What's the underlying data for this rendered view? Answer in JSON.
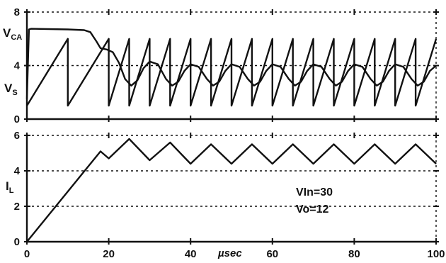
{
  "chart_data": [
    {
      "type": "line",
      "title": "",
      "xlabel": "µsec",
      "ylabel_series_labels": [
        "V",
        "V"
      ],
      "xlim": [
        0,
        100
      ],
      "ylim": [
        0,
        8
      ],
      "x_ticks": [
        0,
        20,
        40,
        60,
        80,
        100
      ],
      "y_ticks": [
        0,
        4,
        8
      ],
      "grid": true,
      "series": [
        {
          "name": "V_CA",
          "label_main": "V",
          "label_sub": "CA",
          "points": [
            [
              0,
              1.5
            ],
            [
              0.5,
              6.7
            ],
            [
              1,
              6.75
            ],
            [
              10,
              6.7
            ],
            [
              14,
              6.65
            ],
            [
              15.5,
              6.5
            ],
            [
              17,
              5.8
            ],
            [
              18,
              5.3
            ],
            [
              19.5,
              5.2
            ],
            [
              21,
              5.0
            ],
            [
              22.5,
              4.2
            ],
            [
              24,
              3.0
            ],
            [
              25.5,
              2.5
            ],
            [
              27,
              2.9
            ],
            [
              28.5,
              3.8
            ],
            [
              30,
              4.3
            ],
            [
              32,
              4.1
            ],
            [
              34,
              3.0
            ],
            [
              35.5,
              2.5
            ],
            [
              37,
              2.8
            ],
            [
              38.5,
              3.6
            ],
            [
              40,
              4.1
            ],
            [
              42,
              3.9
            ],
            [
              44,
              3.0
            ],
            [
              45.5,
              2.5
            ],
            [
              47,
              2.8
            ],
            [
              48.5,
              3.6
            ],
            [
              50,
              4.1
            ],
            [
              52,
              3.9
            ],
            [
              54,
              3.0
            ],
            [
              55.5,
              2.5
            ],
            [
              57,
              2.8
            ],
            [
              58.5,
              3.6
            ],
            [
              60,
              4.1
            ],
            [
              62,
              3.9
            ],
            [
              64,
              3.0
            ],
            [
              65.5,
              2.5
            ],
            [
              67,
              2.8
            ],
            [
              68.5,
              3.6
            ],
            [
              70,
              4.1
            ],
            [
              72,
              3.9
            ],
            [
              74,
              3.0
            ],
            [
              75.5,
              2.5
            ],
            [
              77,
              2.8
            ],
            [
              78.5,
              3.6
            ],
            [
              80,
              4.1
            ],
            [
              82,
              3.9
            ],
            [
              84,
              3.0
            ],
            [
              85.5,
              2.5
            ],
            [
              87,
              2.8
            ],
            [
              88.5,
              3.6
            ],
            [
              90,
              4.1
            ],
            [
              92,
              3.9
            ],
            [
              94,
              3.0
            ],
            [
              95.5,
              2.5
            ],
            [
              97,
              2.8
            ],
            [
              98.5,
              3.6
            ],
            [
              100,
              4.0
            ]
          ]
        },
        {
          "name": "V_S",
          "label_main": "V",
          "label_sub": "S",
          "points": [
            [
              0,
              1.0
            ],
            [
              10,
              6.0
            ],
            [
              10,
              1.0
            ],
            [
              20,
              6.0
            ],
            [
              20,
              1.0
            ],
            [
              25,
              6.0
            ],
            [
              25,
              1.0
            ],
            [
              30,
              6.0
            ],
            [
              30,
              1.0
            ],
            [
              35,
              6.0
            ],
            [
              35,
              1.0
            ],
            [
              40,
              6.0
            ],
            [
              40,
              1.0
            ],
            [
              45,
              6.0
            ],
            [
              45,
              1.0
            ],
            [
              50,
              6.0
            ],
            [
              50,
              1.0
            ],
            [
              55,
              6.0
            ],
            [
              55,
              1.0
            ],
            [
              60,
              6.0
            ],
            [
              60,
              1.0
            ],
            [
              65,
              6.0
            ],
            [
              65,
              1.0
            ],
            [
              70,
              6.0
            ],
            [
              70,
              1.0
            ],
            [
              75,
              6.0
            ],
            [
              75,
              1.0
            ],
            [
              80,
              6.0
            ],
            [
              80,
              1.0
            ],
            [
              85,
              6.0
            ],
            [
              85,
              1.0
            ],
            [
              90,
              6.0
            ],
            [
              90,
              1.0
            ],
            [
              95,
              6.0
            ],
            [
              95,
              1.0
            ],
            [
              100,
              6.0
            ]
          ]
        }
      ]
    },
    {
      "type": "line",
      "title": "",
      "xlabel": "µsec",
      "xlim": [
        0,
        100
      ],
      "ylim": [
        0,
        6
      ],
      "x_ticks": [
        0,
        20,
        40,
        60,
        80,
        100
      ],
      "y_ticks": [
        0,
        2,
        4,
        6
      ],
      "grid": true,
      "series": [
        {
          "name": "I_L",
          "label_main": "I",
          "label_sub": "L",
          "points": [
            [
              0,
              0
            ],
            [
              18,
              5.1
            ],
            [
              20,
              4.7
            ],
            [
              25,
              5.8
            ],
            [
              30,
              4.6
            ],
            [
              35,
              5.6
            ],
            [
              40,
              4.4
            ],
            [
              45,
              5.5
            ],
            [
              50,
              4.4
            ],
            [
              55,
              5.5
            ],
            [
              60,
              4.4
            ],
            [
              65,
              5.5
            ],
            [
              70,
              4.4
            ],
            [
              75,
              5.5
            ],
            [
              80,
              4.4
            ],
            [
              85,
              5.5
            ],
            [
              90,
              4.4
            ],
            [
              95,
              5.5
            ],
            [
              100,
              4.4
            ]
          ]
        }
      ]
    }
  ],
  "x_tick_labels": [
    "0",
    "20",
    "40",
    "60",
    "80",
    "100"
  ],
  "top_y_tick_labels": [
    "0",
    "4",
    "8"
  ],
  "bottom_y_tick_labels": [
    "0",
    "2",
    "4",
    "6"
  ],
  "xlabel": "µsec",
  "annotations": [
    "VIn=30",
    "Vo=12"
  ]
}
